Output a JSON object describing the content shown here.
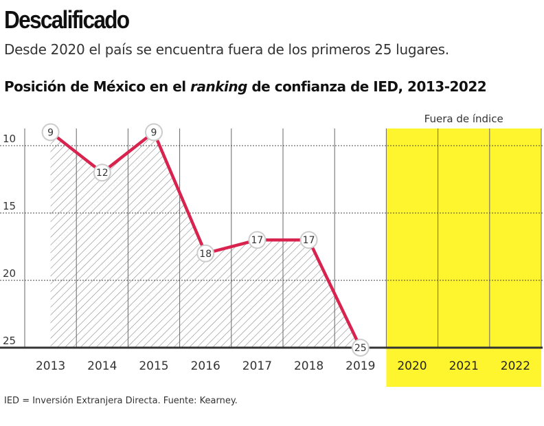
{
  "header": {
    "title": "Descalificado",
    "subtitle": "Desde 2020 el país se encuentra fuera de los primeros 25 lugares."
  },
  "chart_data": {
    "type": "line",
    "title_parts": [
      "Posición de México en el ",
      "ranking",
      " de confianza de IED, 2013-2022"
    ],
    "categories": [
      "2013",
      "2014",
      "2015",
      "2016",
      "2017",
      "2018",
      "2019",
      "2020",
      "2021",
      "2022"
    ],
    "values": [
      9,
      12,
      9,
      18,
      17,
      17,
      25,
      null,
      null,
      null
    ],
    "yticks": [
      10,
      15,
      20,
      25
    ],
    "ylim": [
      25,
      8
    ],
    "y_inverted": true,
    "grid": true,
    "highlight": {
      "categories": [
        "2020",
        "2021",
        "2022"
      ],
      "label": "Fuera de índice",
      "color": "#fff52e"
    },
    "line_color": "#d9234f",
    "area_fill": "hatched"
  },
  "footer": {
    "note": "IED = Inversión Extranjera Directa. Fuente: Kearney."
  }
}
